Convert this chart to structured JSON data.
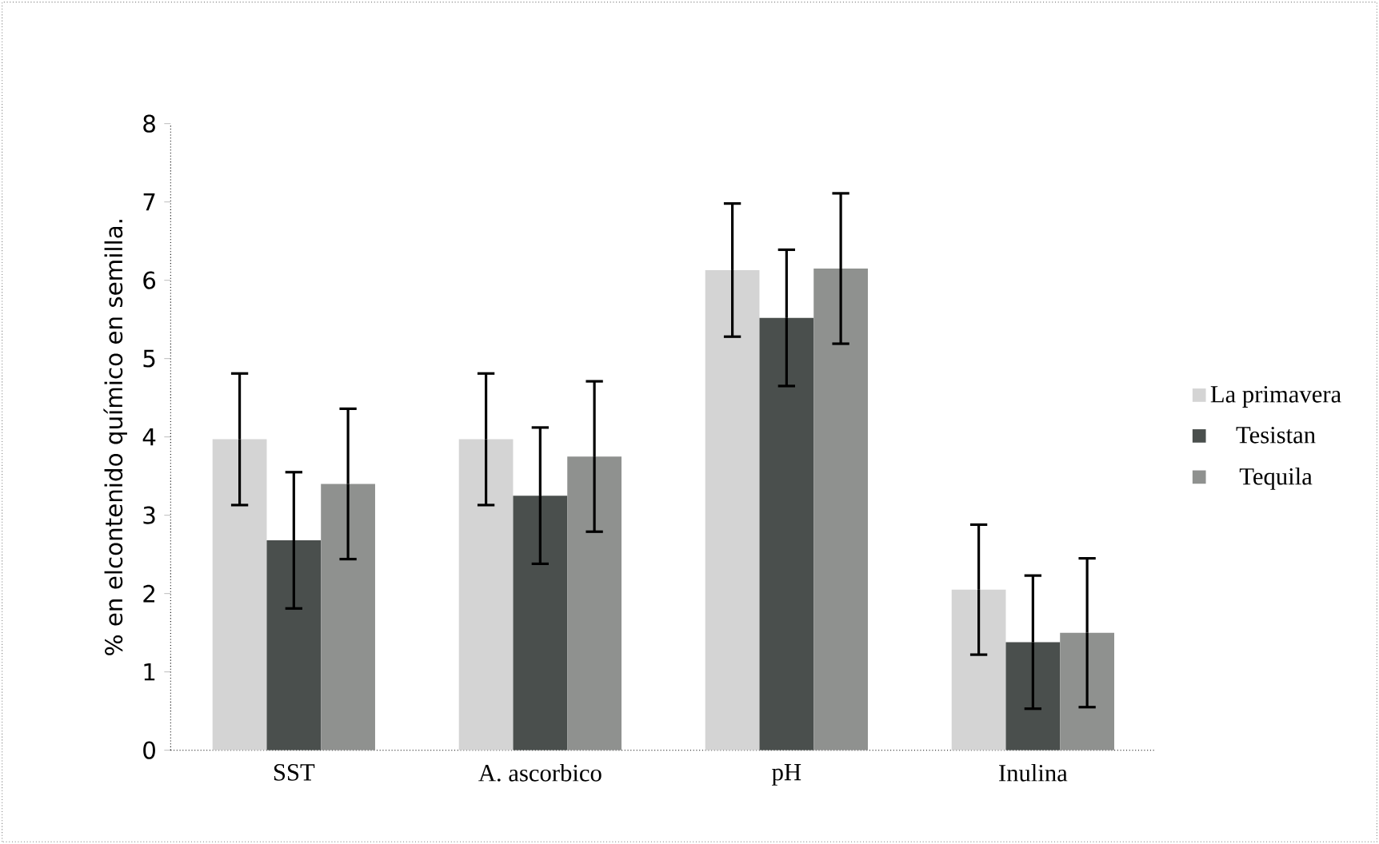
{
  "chart_data": {
    "type": "bar",
    "ylabel": "% en elcontenido químico en semilla.",
    "categories": [
      "SST",
      "A. ascorbico",
      "pH",
      "Inulina"
    ],
    "series": [
      {
        "name": "La primavera",
        "color": "#d4d4d4",
        "values": [
          3.97,
          3.97,
          6.13,
          2.05
        ],
        "errors": [
          0.84,
          0.84,
          0.85,
          0.83
        ]
      },
      {
        "name": "Tesistan",
        "color": "#4a4f4d",
        "values": [
          2.68,
          3.25,
          5.52,
          1.38
        ],
        "errors": [
          0.87,
          0.87,
          0.87,
          0.85
        ]
      },
      {
        "name": "Tequila",
        "color": "#8f918f",
        "values": [
          3.4,
          3.75,
          6.15,
          1.5
        ],
        "errors": [
          0.96,
          0.96,
          0.96,
          0.95
        ]
      }
    ],
    "ylim": [
      0,
      8
    ],
    "yticks": [
      0,
      1,
      2,
      3,
      4,
      5,
      6,
      7,
      8
    ],
    "grid": false,
    "legend": "right"
  }
}
